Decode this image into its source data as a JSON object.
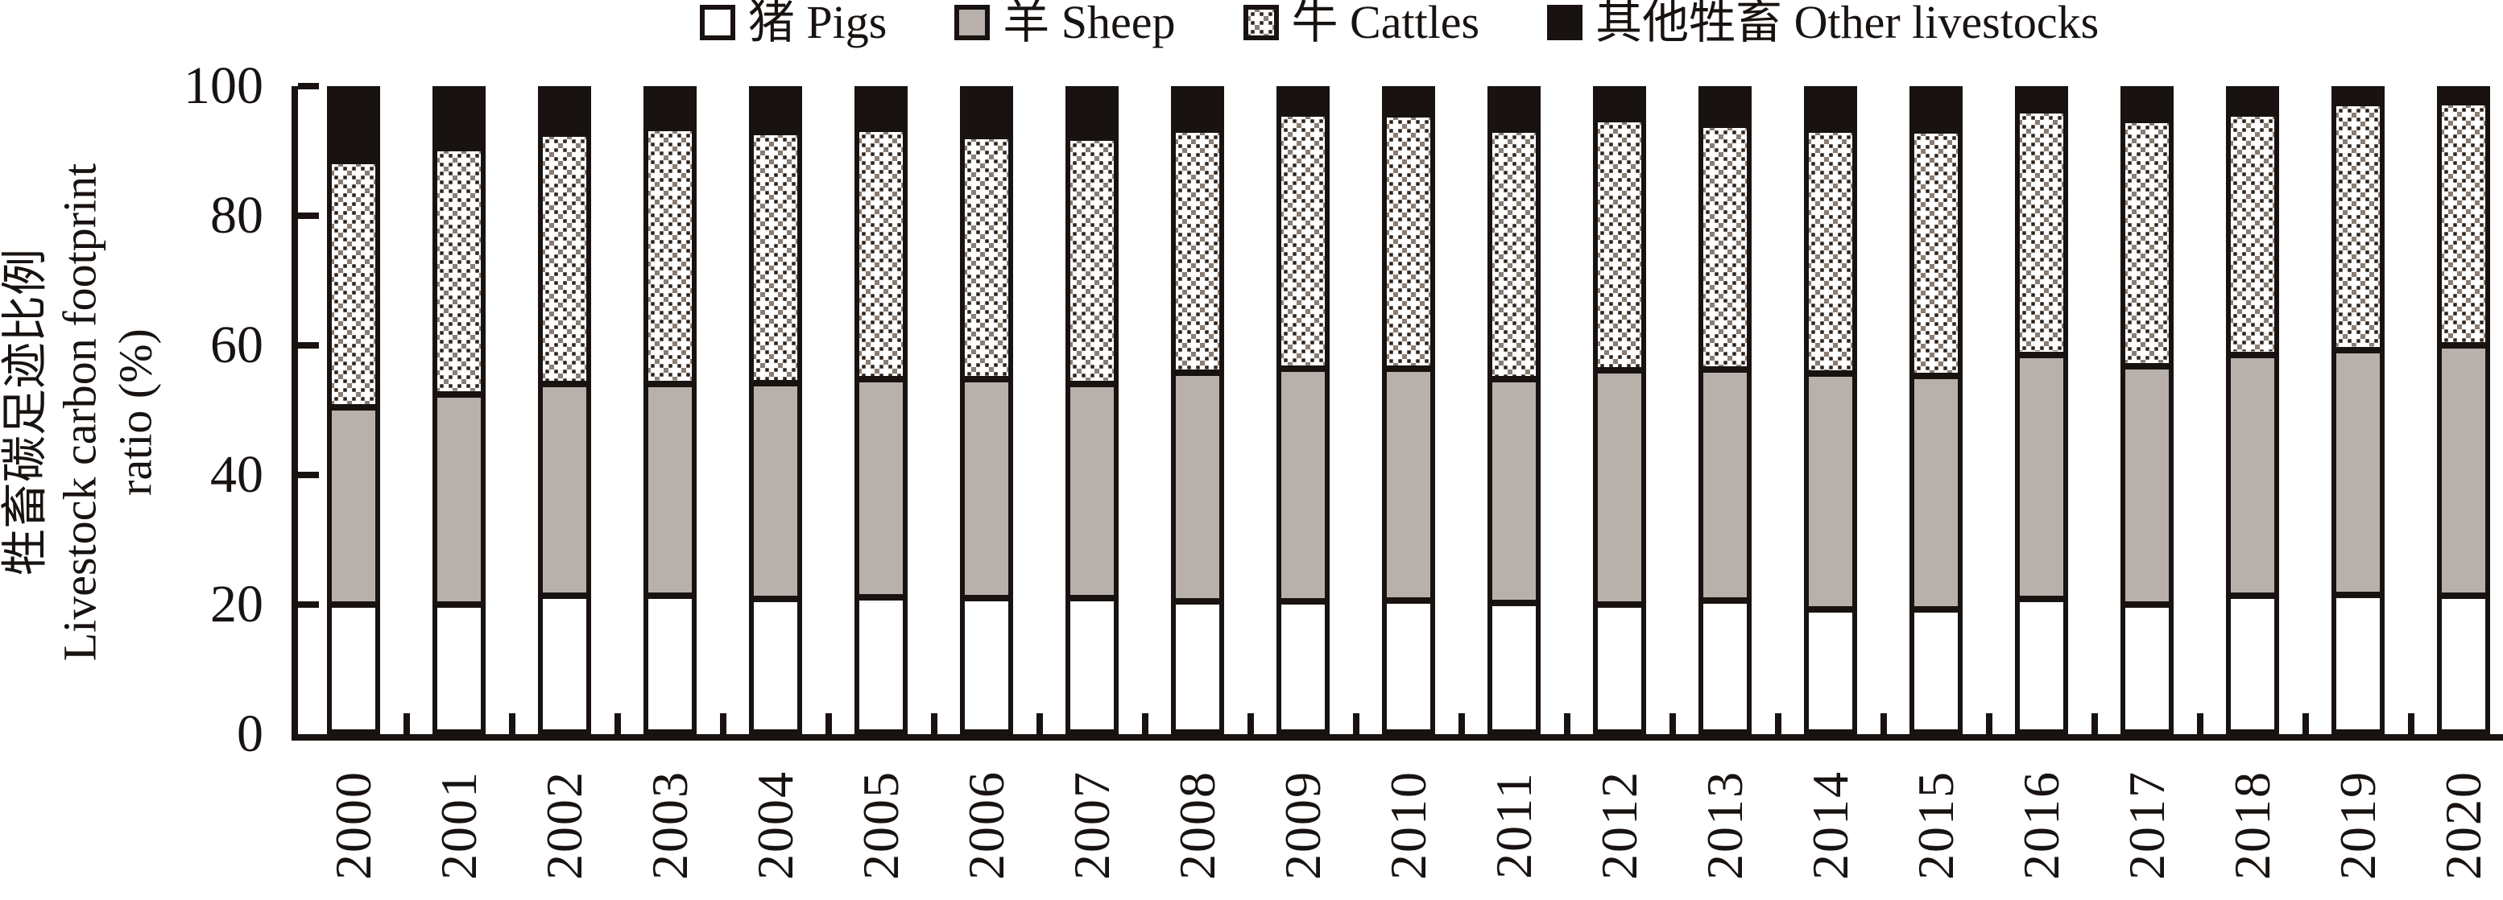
{
  "chart_data": {
    "type": "bar",
    "stacked": true,
    "orientation": "vertical",
    "title": "",
    "ylabel_zh": "牲畜碳足迹比例",
    "ylabel_en_line1": "Livestock carbon footprint",
    "ylabel_en_line2": "ratio (%)",
    "ylim": [
      0,
      100
    ],
    "yticks": [
      0,
      20,
      40,
      60,
      80,
      100
    ],
    "grid": false,
    "legend_position": "top",
    "categories": [
      "2000",
      "2001",
      "2002",
      "2003",
      "2004",
      "2005",
      "2006",
      "2007",
      "2008",
      "2009",
      "2010",
      "2011",
      "2012",
      "2013",
      "2014",
      "2015",
      "2016",
      "2017",
      "2018",
      "2019",
      "2020"
    ],
    "series": [
      {
        "name": "猪 Pigs",
        "swatch": "white",
        "color": "#ffffff",
        "values": [
          20.0,
          20.1,
          21.4,
          21.4,
          20.9,
          21.2,
          21.0,
          21.0,
          20.6,
          20.6,
          20.7,
          20.3,
          20.0,
          20.7,
          19.3,
          19.3,
          20.9,
          20.0,
          21.4,
          21.5,
          21.4
        ]
      },
      {
        "name": "羊 Sheep",
        "swatch": "gray",
        "color": "#b8b0ab",
        "values": [
          30.9,
          32.9,
          33.2,
          33.2,
          33.8,
          34.1,
          34.4,
          33.6,
          35.8,
          36.4,
          36.3,
          35.0,
          36.8,
          36.2,
          36.9,
          36.6,
          38.3,
          37.4,
          37.8,
          38.4,
          39.3
        ]
      },
      {
        "name": "牛 Cattles",
        "swatch": "crosshatch-pattern",
        "color": "#8a7e74",
        "values": [
          38.4,
          38.3,
          39.0,
          39.8,
          39.1,
          39.0,
          37.8,
          38.3,
          37.8,
          39.7,
          39.6,
          38.9,
          39.1,
          38.1,
          38.0,
          38.2,
          38.0,
          38.3,
          37.5,
          38.4,
          37.8
        ]
      },
      {
        "name": "其他牲畜 Other livestocks",
        "swatch": "black",
        "color": "#181310",
        "values": [
          10.7,
          8.7,
          6.4,
          5.6,
          6.2,
          5.7,
          6.8,
          7.1,
          5.8,
          3.3,
          3.4,
          5.8,
          4.1,
          5.0,
          5.8,
          5.9,
          2.8,
          4.3,
          3.3,
          1.7,
          1.5
        ]
      }
    ]
  },
  "colors": {
    "ink": "#181310",
    "sheep_gray": "#b8b0ab",
    "hatch_bg": "#8a7e74",
    "hatch_dot": "#2e251e",
    "hatch_cross": "#ffffff"
  }
}
